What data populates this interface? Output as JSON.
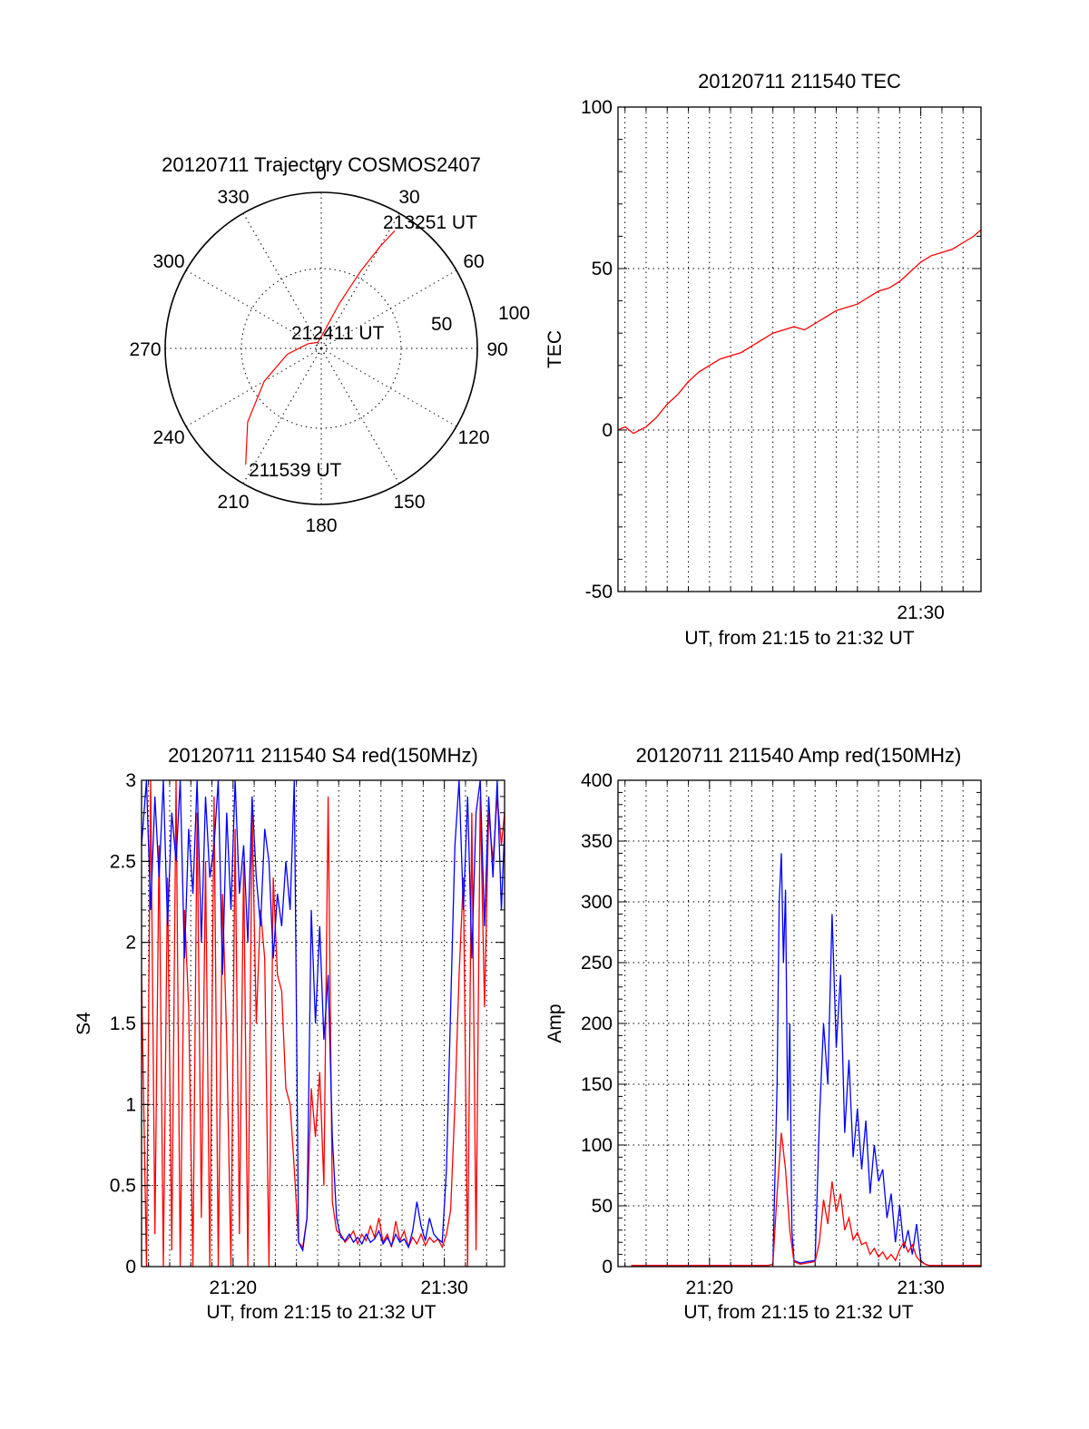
{
  "colors": {
    "red": "#ff0000",
    "blue": "#0000ff",
    "axis": "#000000"
  },
  "chart_data": [
    {
      "id": "trajectory",
      "type": "polar",
      "title": "20120711 Trajectory COSMOS2407",
      "azimuth_labels": [
        "0",
        "30",
        "60",
        "90",
        "120",
        "150",
        "180",
        "210",
        "240",
        "270",
        "300",
        "330"
      ],
      "radial_labels": [
        "50",
        "100"
      ],
      "elevation_rings": [
        50,
        100
      ],
      "track": {
        "color": "red",
        "points": [
          {
            "az": 213,
            "el": 10
          },
          {
            "az": 225,
            "el": 30
          },
          {
            "az": 240,
            "el": 52
          },
          {
            "az": 260,
            "el": 70
          },
          {
            "az": 290,
            "el": 82
          },
          {
            "az": 330,
            "el": 86
          },
          {
            "az": 10,
            "el": 80
          },
          {
            "az": 22,
            "el": 62
          },
          {
            "az": 27,
            "el": 40
          },
          {
            "az": 30,
            "el": 22
          },
          {
            "az": 32,
            "el": 10
          }
        ]
      },
      "annotations": {
        "start": "211539 UT",
        "middle": "212411 UT",
        "end": "213251 UT"
      }
    },
    {
      "id": "tec",
      "type": "line",
      "title": "20120711 211540 TEC",
      "xlabel": "UT, from 21:15 to 21:32 UT",
      "ylabel": "TEC",
      "xlim": [
        15.67,
        32.85
      ],
      "ylim": [
        -50,
        100
      ],
      "x_ticks": [
        {
          "value": 30,
          "label": "21:30"
        }
      ],
      "y_ticks": [
        {
          "value": -50,
          "label": "-50"
        },
        {
          "value": 0,
          "label": "0"
        },
        {
          "value": 50,
          "label": "50"
        },
        {
          "value": 100,
          "label": "100"
        }
      ],
      "series": [
        {
          "color": "red",
          "x": [
            15.67,
            16.0,
            16.4,
            17.0,
            17.5,
            18.0,
            18.5,
            19.0,
            19.5,
            20.0,
            20.5,
            21.0,
            21.5,
            22.0,
            22.5,
            23.0,
            23.5,
            24.0,
            24.5,
            25.0,
            25.5,
            26.0,
            26.5,
            27.0,
            27.5,
            28.0,
            28.5,
            29.0,
            29.5,
            30.0,
            30.5,
            31.0,
            31.5,
            32.0,
            32.5,
            32.85
          ],
          "y": [
            0,
            1,
            -1,
            1,
            4,
            8,
            11,
            15,
            18,
            20,
            22,
            23,
            24,
            26,
            28,
            30,
            31,
            32,
            31,
            33,
            35,
            37,
            38,
            39,
            41,
            43,
            44,
            46,
            49,
            52,
            54,
            55,
            56,
            58,
            60,
            62
          ]
        }
      ]
    },
    {
      "id": "s4",
      "type": "line",
      "title": "20120711 211540 S4 red(150MHz)",
      "xlabel": "UT, from 21:15 to 21:32 UT",
      "ylabel": "S4",
      "xlim": [
        15.67,
        32.85
      ],
      "ylim": [
        0,
        3
      ],
      "x_ticks": [
        {
          "value": 20,
          "label": "21:20"
        },
        {
          "value": 30,
          "label": "21:30"
        }
      ],
      "y_ticks": [
        {
          "value": 0,
          "label": "0"
        },
        {
          "value": 0.5,
          "label": "0.5"
        },
        {
          "value": 1,
          "label": "1"
        },
        {
          "value": 1.5,
          "label": "1.5"
        },
        {
          "value": 2,
          "label": "2"
        },
        {
          "value": 2.5,
          "label": "2.5"
        },
        {
          "value": 3,
          "label": "3"
        }
      ],
      "series": [
        {
          "color": "red",
          "x": [
            15.67,
            15.9,
            16.1,
            16.3,
            16.5,
            16.7,
            16.9,
            17.1,
            17.3,
            17.5,
            17.7,
            17.9,
            18.1,
            18.3,
            18.5,
            18.7,
            18.9,
            19.1,
            19.3,
            19.5,
            19.7,
            19.9,
            20.1,
            20.3,
            20.5,
            20.7,
            20.9,
            21.1,
            21.3,
            21.5,
            21.7,
            21.9,
            22.1,
            22.3,
            22.5,
            22.7,
            22.9,
            23.1,
            23.3,
            23.5,
            23.7,
            23.9,
            24.1,
            24.3,
            24.5,
            24.7,
            24.9,
            25.1,
            25.3,
            25.5,
            25.7,
            25.9,
            26.1,
            26.3,
            26.5,
            26.7,
            26.9,
            27.1,
            27.3,
            27.5,
            27.7,
            27.9,
            28.1,
            28.3,
            28.5,
            28.7,
            28.9,
            29.1,
            29.3,
            29.5,
            29.7,
            29.9,
            30.1,
            30.3,
            30.5,
            30.7,
            30.9,
            31.1,
            31.3,
            31.5,
            31.7,
            31.9,
            32.1,
            32.3,
            32.5,
            32.7,
            32.85
          ],
          "y": [
            1.8,
            0,
            3.0,
            0.2,
            2.6,
            0,
            2.4,
            0.1,
            3.0,
            0,
            2.2,
            1.6,
            0,
            2.8,
            0.3,
            2.5,
            0,
            2.9,
            0,
            2.3,
            1.4,
            0,
            2.7,
            0.2,
            2.5,
            0,
            2.8,
            1.5,
            2.2,
            1.9,
            0,
            2.4,
            1.8,
            1.7,
            1.1,
            1.0,
            0.6,
            0.15,
            0.12,
            0.3,
            1.1,
            0.8,
            1.2,
            0.5,
            2.9,
            0.4,
            0.22,
            0.2,
            0.15,
            0.18,
            0.22,
            0.14,
            0.2,
            0.16,
            0.25,
            0.18,
            0.3,
            0.15,
            0.2,
            0.12,
            0.28,
            0.16,
            0.22,
            0.12,
            0.18,
            0.14,
            0.2,
            0.13,
            0.18,
            0.15,
            0.17,
            0.12,
            0.2,
            0.35,
            1.0,
            1.8,
            2.4,
            0,
            2.8,
            0.1,
            2.9,
            1.6,
            2.8,
            2.5,
            2.9,
            2.6,
            2.8
          ]
        },
        {
          "color": "blue",
          "x": [
            15.67,
            15.9,
            16.1,
            16.3,
            16.5,
            16.7,
            16.9,
            17.1,
            17.3,
            17.5,
            17.7,
            17.9,
            18.1,
            18.3,
            18.5,
            18.7,
            18.9,
            19.1,
            19.3,
            19.5,
            19.7,
            19.9,
            20.1,
            20.3,
            20.5,
            20.7,
            20.9,
            21.1,
            21.3,
            21.5,
            21.7,
            21.9,
            22.1,
            22.3,
            22.5,
            22.7,
            22.9,
            23.1,
            23.3,
            23.5,
            23.7,
            23.9,
            24.1,
            24.3,
            24.5,
            24.7,
            24.9,
            25.1,
            25.3,
            25.5,
            25.7,
            25.9,
            26.1,
            26.3,
            26.5,
            26.7,
            26.9,
            27.1,
            27.3,
            27.5,
            27.7,
            27.9,
            28.1,
            28.3,
            28.5,
            28.7,
            28.9,
            29.1,
            29.3,
            29.5,
            29.7,
            29.9,
            30.1,
            30.3,
            30.5,
            30.7,
            30.9,
            31.1,
            31.3,
            31.5,
            31.7,
            31.9,
            32.1,
            32.3,
            32.5,
            32.7,
            32.85
          ],
          "y": [
            2.6,
            3.0,
            2.2,
            2.9,
            2.4,
            3.0,
            2.1,
            2.8,
            2.5,
            3.0,
            1.9,
            2.7,
            2.3,
            3.0,
            2.0,
            2.9,
            2.4,
            2.6,
            3.0,
            1.8,
            2.8,
            2.2,
            3.0,
            2.3,
            2.6,
            2.0,
            2.9,
            2.4,
            2.1,
            2.7,
            2.5,
            1.9,
            2.3,
            2.1,
            2.5,
            2.2,
            3.0,
            0.15,
            0.1,
            0.3,
            2.2,
            1.5,
            2.1,
            1.4,
            1.8,
            0.8,
            0.3,
            0.18,
            0.16,
            0.2,
            0.15,
            0.18,
            0.14,
            0.2,
            0.15,
            0.17,
            0.22,
            0.14,
            0.18,
            0.13,
            0.2,
            0.15,
            0.17,
            0.12,
            0.22,
            0.4,
            0.25,
            0.16,
            0.3,
            0.2,
            0.17,
            0.15,
            0.6,
            1.6,
            2.6,
            3.0,
            2.2,
            2.9,
            1.9,
            2.8,
            3.0,
            2.1,
            2.9,
            2.4,
            3.0,
            2.2,
            2.7
          ]
        }
      ]
    },
    {
      "id": "amp",
      "type": "line",
      "title": "20120711 211540 Amp red(150MHz)",
      "xlabel": "UT, from 21:15 to 21:32 UT",
      "ylabel": "Amp",
      "xlim": [
        15.67,
        32.85
      ],
      "ylim": [
        0,
        400
      ],
      "x_ticks": [
        {
          "value": 20,
          "label": "21:20"
        },
        {
          "value": 30,
          "label": "21:30"
        }
      ],
      "y_ticks": [
        {
          "value": 0,
          "label": "0"
        },
        {
          "value": 50,
          "label": "50"
        },
        {
          "value": 100,
          "label": "100"
        },
        {
          "value": 150,
          "label": "150"
        },
        {
          "value": 200,
          "label": "200"
        },
        {
          "value": 250,
          "label": "250"
        },
        {
          "value": 300,
          "label": "300"
        },
        {
          "value": 350,
          "label": "350"
        },
        {
          "value": 400,
          "label": "400"
        }
      ],
      "series": [
        {
          "color": "blue",
          "x": [
            16.3,
            20.0,
            22.8,
            23.0,
            23.2,
            23.3,
            23.4,
            23.5,
            23.6,
            23.7,
            23.8,
            23.9,
            24.0,
            24.3,
            24.6,
            25.0,
            25.2,
            25.4,
            25.6,
            25.8,
            26.0,
            26.2,
            26.4,
            26.6,
            26.8,
            27.0,
            27.2,
            27.4,
            27.6,
            27.8,
            28.0,
            28.2,
            28.4,
            28.6,
            28.8,
            29.0,
            29.2,
            29.4,
            29.6,
            29.8,
            30.0,
            30.2,
            30.4,
            31.0,
            32.85
          ],
          "y": [
            1,
            1,
            1,
            2,
            150,
            300,
            340,
            250,
            310,
            120,
            200,
            30,
            5,
            3,
            4,
            5,
            120,
            200,
            150,
            290,
            180,
            240,
            110,
            170,
            90,
            130,
            80,
            120,
            60,
            100,
            70,
            80,
            40,
            60,
            20,
            50,
            15,
            30,
            10,
            35,
            5,
            2,
            1,
            1,
            1
          ]
        },
        {
          "color": "red",
          "x": [
            16.3,
            20.0,
            22.8,
            23.0,
            23.2,
            23.4,
            23.6,
            23.8,
            24.0,
            24.3,
            24.6,
            25.0,
            25.2,
            25.4,
            25.6,
            25.8,
            26.0,
            26.2,
            26.4,
            26.6,
            26.8,
            27.0,
            27.2,
            27.4,
            27.6,
            27.8,
            28.0,
            28.2,
            28.4,
            28.6,
            28.8,
            29.0,
            29.2,
            29.4,
            29.6,
            29.8,
            30.0,
            30.2,
            30.4,
            31.0,
            32.85
          ],
          "y": [
            1,
            1,
            1,
            2,
            60,
            110,
            80,
            30,
            4,
            2,
            3,
            4,
            20,
            55,
            35,
            70,
            45,
            60,
            30,
            40,
            22,
            28,
            18,
            20,
            10,
            15,
            8,
            12,
            6,
            10,
            5,
            14,
            20,
            12,
            18,
            8,
            4,
            2,
            1,
            1,
            1
          ]
        }
      ]
    }
  ]
}
